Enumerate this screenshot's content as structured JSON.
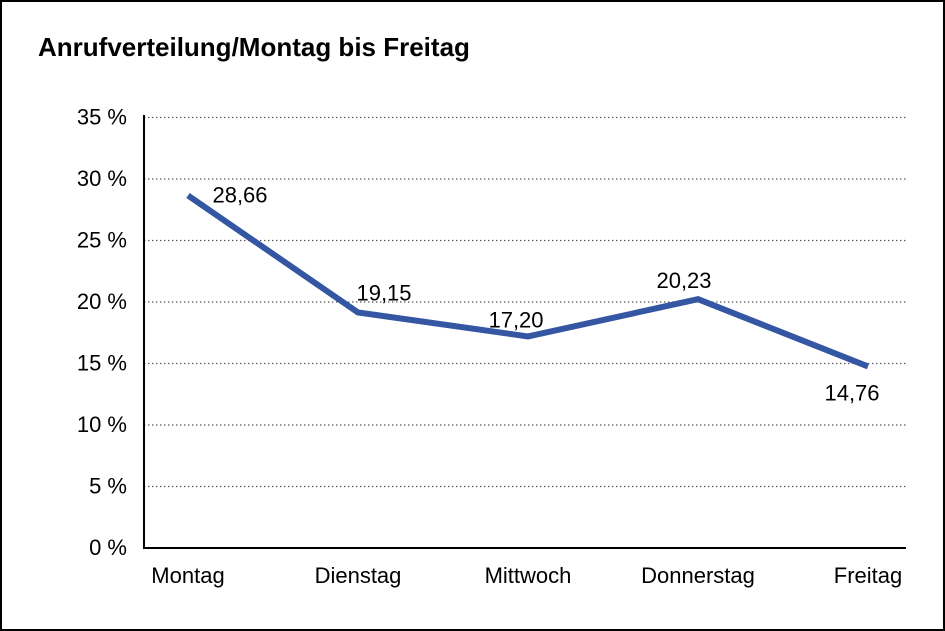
{
  "chart_data": {
    "type": "line",
    "title": "Anrufverteilung/Montag bis Freitag",
    "categories": [
      "Montag",
      "Dienstag",
      "Mittwoch",
      "Donnerstag",
      "Freitag"
    ],
    "series": [
      {
        "name": "Anrufverteilung",
        "values": [
          28.66,
          19.15,
          17.2,
          20.23,
          14.76
        ],
        "point_labels": [
          "28,66",
          "19,15",
          "17,20",
          "20,23",
          "14,76"
        ]
      }
    ],
    "xlabel": "",
    "ylabel": "",
    "y_ticks": [
      "0 %",
      "5 %",
      "10 %",
      "15 %",
      "20 %",
      "25 %",
      "30 %",
      "35 %"
    ],
    "ylim": [
      0,
      35
    ],
    "y_step": 5,
    "grid": "horizontal-dotted",
    "legend": "none",
    "line_color": "#3556A2",
    "axis_color": "#000000",
    "grid_color": "#555555",
    "text_color": "#000000",
    "background_color": "#ffffff"
  }
}
